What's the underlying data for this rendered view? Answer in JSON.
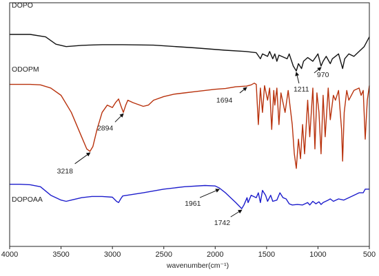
{
  "chart_data": {
    "type": "line",
    "title": "",
    "xlabel": "wavenumber(cm⁻¹)",
    "ylabel": "",
    "xlim": [
      4000,
      500
    ],
    "x_reversed": true,
    "grid": false,
    "x_ticks": [
      4000,
      3500,
      3000,
      2500,
      2000,
      1500,
      1000,
      500
    ],
    "y_range_note_unitless": [
      0,
      100
    ],
    "series": [
      {
        "name": "DOPO",
        "color": "#111111",
        "points": [
          [
            4000,
            87
          ],
          [
            3800,
            87
          ],
          [
            3650,
            86
          ],
          [
            3550,
            83
          ],
          [
            3450,
            82
          ],
          [
            3300,
            82.5
          ],
          [
            3100,
            82.8
          ],
          [
            2900,
            82.8
          ],
          [
            2600,
            82.6
          ],
          [
            2200,
            81.5
          ],
          [
            1900,
            80.5
          ],
          [
            1700,
            80
          ],
          [
            1600,
            79.5
          ],
          [
            1560,
            77
          ],
          [
            1540,
            79
          ],
          [
            1490,
            78
          ],
          [
            1470,
            80
          ],
          [
            1440,
            77
          ],
          [
            1420,
            79
          ],
          [
            1400,
            76
          ],
          [
            1380,
            78.5
          ],
          [
            1300,
            77
          ],
          [
            1280,
            79
          ],
          [
            1240,
            74
          ],
          [
            1211,
            72
          ],
          [
            1190,
            75
          ],
          [
            1160,
            73
          ],
          [
            1140,
            76
          ],
          [
            1100,
            77.5
          ],
          [
            1050,
            76
          ],
          [
            1000,
            79
          ],
          [
            970,
            74
          ],
          [
            950,
            76
          ],
          [
            920,
            78
          ],
          [
            880,
            75
          ],
          [
            860,
            77
          ],
          [
            800,
            79
          ],
          [
            760,
            73
          ],
          [
            740,
            77
          ],
          [
            700,
            79
          ],
          [
            650,
            78
          ],
          [
            600,
            80
          ],
          [
            550,
            82
          ],
          [
            500,
            86
          ]
        ]
      },
      {
        "name": "ODOPM",
        "color": "#b8310c",
        "points": [
          [
            4000,
            66.5
          ],
          [
            3800,
            66.5
          ],
          [
            3700,
            66.3
          ],
          [
            3600,
            65
          ],
          [
            3500,
            62
          ],
          [
            3400,
            55
          ],
          [
            3300,
            45
          ],
          [
            3250,
            40
          ],
          [
            3218,
            39
          ],
          [
            3190,
            41
          ],
          [
            3150,
            48
          ],
          [
            3100,
            55
          ],
          [
            3050,
            58
          ],
          [
            3000,
            57
          ],
          [
            2970,
            59
          ],
          [
            2940,
            60.5
          ],
          [
            2920,
            58
          ],
          [
            2894,
            55
          ],
          [
            2870,
            58
          ],
          [
            2850,
            60
          ],
          [
            2800,
            59
          ],
          [
            2700,
            57.5
          ],
          [
            2650,
            58
          ],
          [
            2600,
            60
          ],
          [
            2500,
            61.5
          ],
          [
            2400,
            62.5
          ],
          [
            2300,
            63
          ],
          [
            2200,
            63.5
          ],
          [
            2000,
            64.5
          ],
          [
            1900,
            64.8
          ],
          [
            1800,
            65.5
          ],
          [
            1694,
            65.8
          ],
          [
            1650,
            66.3
          ],
          [
            1620,
            67
          ],
          [
            1600,
            66.5
          ],
          [
            1580,
            50
          ],
          [
            1560,
            65
          ],
          [
            1540,
            55
          ],
          [
            1520,
            66
          ],
          [
            1490,
            60
          ],
          [
            1470,
            65
          ],
          [
            1450,
            48
          ],
          [
            1430,
            64
          ],
          [
            1420,
            58
          ],
          [
            1400,
            65
          ],
          [
            1380,
            50
          ],
          [
            1360,
            63
          ],
          [
            1320,
            55
          ],
          [
            1290,
            64
          ],
          [
            1250,
            50
          ],
          [
            1230,
            38
          ],
          [
            1211,
            32
          ],
          [
            1190,
            44
          ],
          [
            1170,
            36
          ],
          [
            1150,
            50
          ],
          [
            1130,
            38
          ],
          [
            1100,
            60
          ],
          [
            1080,
            45
          ],
          [
            1050,
            65
          ],
          [
            1030,
            40
          ],
          [
            1010,
            63
          ],
          [
            990,
            55
          ],
          [
            970,
            38
          ],
          [
            950,
            62
          ],
          [
            930,
            45
          ],
          [
            900,
            65
          ],
          [
            880,
            52
          ],
          [
            850,
            62
          ],
          [
            830,
            60
          ],
          [
            800,
            64
          ],
          [
            770,
            48
          ],
          [
            760,
            35
          ],
          [
            745,
            55
          ],
          [
            720,
            64
          ],
          [
            700,
            60
          ],
          [
            650,
            64
          ],
          [
            600,
            65
          ],
          [
            580,
            62
          ],
          [
            560,
            64
          ],
          [
            540,
            44
          ],
          [
            520,
            60
          ],
          [
            500,
            66
          ]
        ]
      },
      {
        "name": "DOPOAA",
        "color": "#1c1ccc",
        "points": [
          [
            4000,
            25.5
          ],
          [
            3900,
            25.5
          ],
          [
            3800,
            25.3
          ],
          [
            3700,
            24.5
          ],
          [
            3600,
            21
          ],
          [
            3500,
            19
          ],
          [
            3450,
            18.5
          ],
          [
            3400,
            19
          ],
          [
            3300,
            20
          ],
          [
            3200,
            20.5
          ],
          [
            3100,
            20.5
          ],
          [
            3000,
            20.2
          ],
          [
            2960,
            18.5
          ],
          [
            2940,
            18
          ],
          [
            2920,
            19.5
          ],
          [
            2900,
            20.7
          ],
          [
            2700,
            22
          ],
          [
            2500,
            23.5
          ],
          [
            2300,
            24.5
          ],
          [
            2100,
            25
          ],
          [
            2000,
            24.8
          ],
          [
            1961,
            24
          ],
          [
            1900,
            22
          ],
          [
            1850,
            20
          ],
          [
            1800,
            18
          ],
          [
            1742,
            15.5
          ],
          [
            1720,
            17
          ],
          [
            1690,
            20
          ],
          [
            1680,
            18
          ],
          [
            1650,
            21
          ],
          [
            1600,
            20
          ],
          [
            1580,
            22
          ],
          [
            1560,
            18
          ],
          [
            1540,
            23
          ],
          [
            1510,
            21
          ],
          [
            1490,
            18.5
          ],
          [
            1460,
            21
          ],
          [
            1440,
            18.5
          ],
          [
            1400,
            19
          ],
          [
            1370,
            22
          ],
          [
            1340,
            20
          ],
          [
            1310,
            19.5
          ],
          [
            1280,
            17.5
          ],
          [
            1250,
            17
          ],
          [
            1200,
            17.2
          ],
          [
            1150,
            17
          ],
          [
            1100,
            18
          ],
          [
            1080,
            17
          ],
          [
            1050,
            18.5
          ],
          [
            1020,
            17.5
          ],
          [
            990,
            18.3
          ],
          [
            970,
            17.2
          ],
          [
            950,
            18
          ],
          [
            900,
            19
          ],
          [
            880,
            19.5
          ],
          [
            850,
            18.5
          ],
          [
            800,
            19.5
          ],
          [
            750,
            19
          ],
          [
            700,
            20
          ],
          [
            650,
            21
          ],
          [
            600,
            22
          ],
          [
            560,
            22
          ],
          [
            540,
            23.5
          ],
          [
            500,
            23.5
          ]
        ]
      }
    ],
    "annotations": [
      {
        "text": "970",
        "series": "DOPO",
        "x": 970
      },
      {
        "text": "1211",
        "series": "DOPO",
        "x": 1211
      },
      {
        "text": "1694",
        "series": "ODOPM",
        "x": 1694
      },
      {
        "text": "2894",
        "series": "ODOPM",
        "x": 2894
      },
      {
        "text": "3218",
        "series": "ODOPM",
        "x": 3218
      },
      {
        "text": "1961",
        "series": "DOPOAA",
        "x": 1961
      },
      {
        "text": "1742",
        "series": "DOPOAA",
        "x": 1742
      }
    ]
  }
}
